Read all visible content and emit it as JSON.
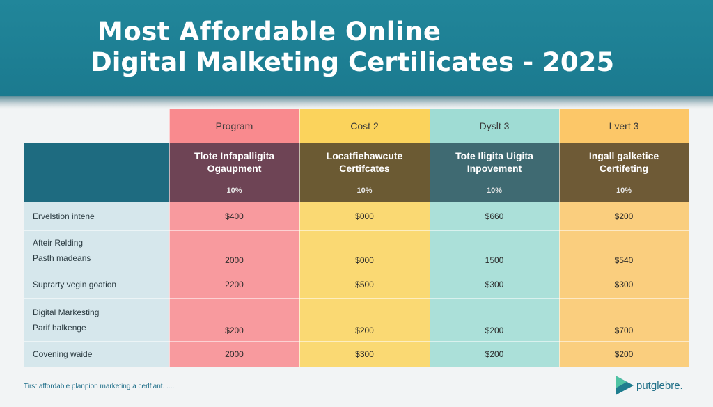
{
  "header": {
    "title_line1": "Most Affordable  Online",
    "title_line2": "Digital Malketing Certilicates - 2025"
  },
  "columns": [
    {
      "label": "Program",
      "color": "#f98a8e",
      "sub_title": "Tlote Infapalligita\nOgaupment",
      "pct": "10%"
    },
    {
      "label": "Cost 2",
      "color": "#fbd35c",
      "sub_title": "Locatfiehawcute\nCertifcates",
      "pct": "10%"
    },
    {
      "label": "Dyslt 3",
      "color": "#9fdcd4",
      "sub_title": "Tote Iligita Uigita\nInpovement",
      "pct": "10%"
    },
    {
      "label": "Lvert 3",
      "color": "#fcc768",
      "sub_title": "Ingall galketice\nCertifeting",
      "pct": "10%"
    }
  ],
  "rows": [
    {
      "label": "Ervelstion intene",
      "values": [
        "$400",
        "$000",
        "$660",
        "$200"
      ]
    },
    {
      "label": "Afteir Relding\nPasth madeans",
      "values": [
        "2000",
        "$000",
        "1500",
        "$540"
      ]
    },
    {
      "label": "Suprarty vegin goation",
      "values": [
        "2200",
        "$500",
        "$300",
        "$300"
      ]
    },
    {
      "label": "Digital Markesting\nParif halkenge",
      "values": [
        "$200",
        "$200",
        "$200",
        "$700"
      ]
    },
    {
      "label": "Covening waide",
      "values": [
        "2000",
        "$300",
        "$200",
        "$200"
      ]
    }
  ],
  "footer": {
    "note": "Tirst affordable planpion marketing a cerlfiant. ....",
    "logo": "putglebre."
  }
}
